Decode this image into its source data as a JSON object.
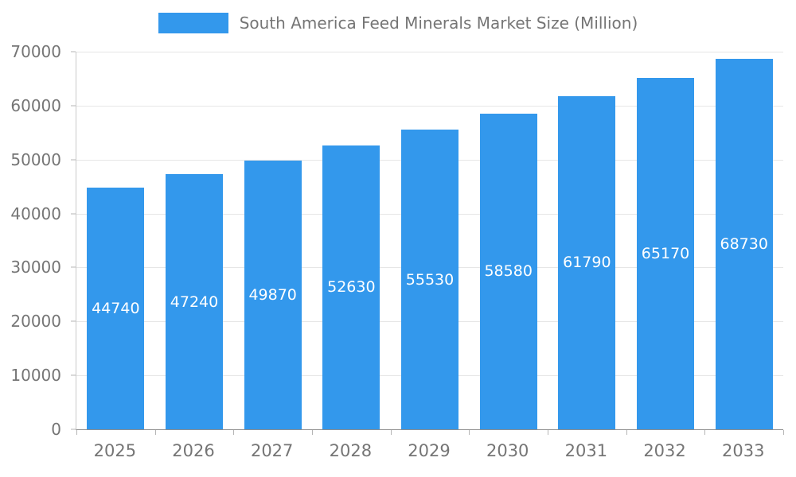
{
  "chart_data": {
    "type": "bar",
    "title": "South America Feed Minerals Market Size (Million)",
    "categories": [
      "2025",
      "2026",
      "2027",
      "2028",
      "2029",
      "2030",
      "2031",
      "2032",
      "2033"
    ],
    "values": [
      44740,
      47240,
      49870,
      52630,
      55530,
      58580,
      61790,
      65170,
      68730
    ],
    "xlabel": "",
    "ylabel": "",
    "ylim": [
      0,
      70000
    ],
    "yticks": [
      0,
      10000,
      20000,
      30000,
      40000,
      50000,
      60000,
      70000
    ],
    "grid": true,
    "legend_position": "top",
    "bar_color": "#3398EC",
    "value_label_color": "#ffffff",
    "axis_text_color": "#757575"
  }
}
